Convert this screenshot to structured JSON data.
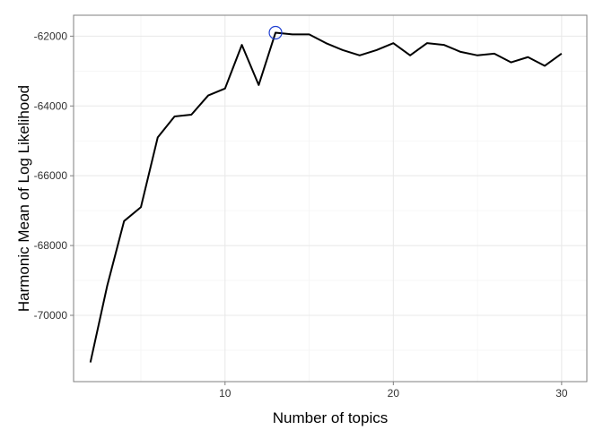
{
  "chart_data": {
    "type": "line",
    "title": "",
    "xlabel": "Number of topics",
    "ylabel": "Harmonic Mean of Log Likelihood",
    "xlim": [
      1,
      31.5
    ],
    "ylim": [
      -71900,
      -61400
    ],
    "x_ticks": [
      10,
      20,
      30
    ],
    "x_tick_labels": [
      "10",
      "20",
      "30"
    ],
    "y_ticks": [
      -70000,
      -68000,
      -66000,
      -64000,
      -62000
    ],
    "y_tick_labels": [
      "-70000",
      "-68000",
      "-66000",
      "-64000",
      "-62000"
    ],
    "x_minor_ticks": [
      5,
      15,
      25
    ],
    "y_minor_ticks": [
      -71000,
      -69000,
      -67000,
      -65000,
      -63000
    ],
    "grid": true,
    "x": [
      2,
      3,
      4,
      5,
      6,
      7,
      8,
      9,
      10,
      11,
      12,
      13,
      14,
      15,
      16,
      17,
      18,
      19,
      20,
      21,
      22,
      23,
      24,
      25,
      26,
      27,
      28,
      29,
      30
    ],
    "series": [
      {
        "values": [
          -71350,
          -69150,
          -67300,
          -66900,
          -64900,
          -64300,
          -64250,
          -63700,
          -63500,
          -62250,
          -63400,
          -61900,
          -61950,
          -61950,
          -62200,
          -62400,
          -62550,
          -62400,
          -62200,
          -62550,
          -62200,
          -62250,
          -62450,
          -62550,
          -62500,
          -62750,
          -62600,
          -62850,
          -62500
        ],
        "color": "#000000"
      }
    ],
    "highlight": {
      "x": 13,
      "y": -61900,
      "color": "#1f3fd1"
    },
    "colors": {
      "panel_border": "#7f7f7f",
      "grid": "#e8e8e8",
      "line": "#000000"
    }
  }
}
